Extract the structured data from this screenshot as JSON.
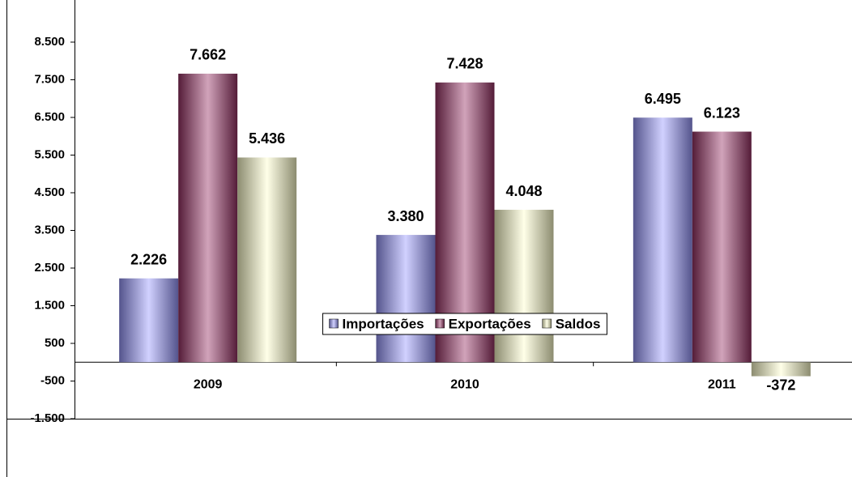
{
  "chart_data": {
    "type": "bar",
    "categories": [
      "2009",
      "2010",
      "2011"
    ],
    "series": [
      {
        "name": "Importações",
        "color": "#9999ff",
        "values": [
          2226,
          3380,
          6495
        ],
        "value_labels": [
          "2.226",
          "3.380",
          "6.495"
        ]
      },
      {
        "name": "Exportações",
        "color": "#993366",
        "values": [
          7662,
          7428,
          6123
        ],
        "value_labels": [
          "7.662",
          "7.428",
          "6.123"
        ]
      },
      {
        "name": "Saldos",
        "color": "#ffffcc",
        "values": [
          5436,
          4048,
          -372
        ],
        "value_labels": [
          "5.436",
          "4.048",
          "-372"
        ]
      }
    ],
    "ylim": [
      -1500,
      8500
    ],
    "yticks": [
      {
        "value": -1500,
        "label": "-1.500"
      },
      -500,
      500,
      {
        "value": 1500,
        "label": "1.500"
      },
      {
        "value": 2500,
        "label": "2.500"
      },
      {
        "value": 3500,
        "label": "3.500"
      },
      {
        "value": 4500,
        "label": "4.500"
      },
      {
        "value": 5500,
        "label": "5.500"
      },
      {
        "value": 6500,
        "label": "6.500"
      },
      {
        "value": 7500,
        "label": "7.500"
      },
      {
        "value": 8500,
        "label": "8.500"
      }
    ],
    "legend": "bottom"
  }
}
